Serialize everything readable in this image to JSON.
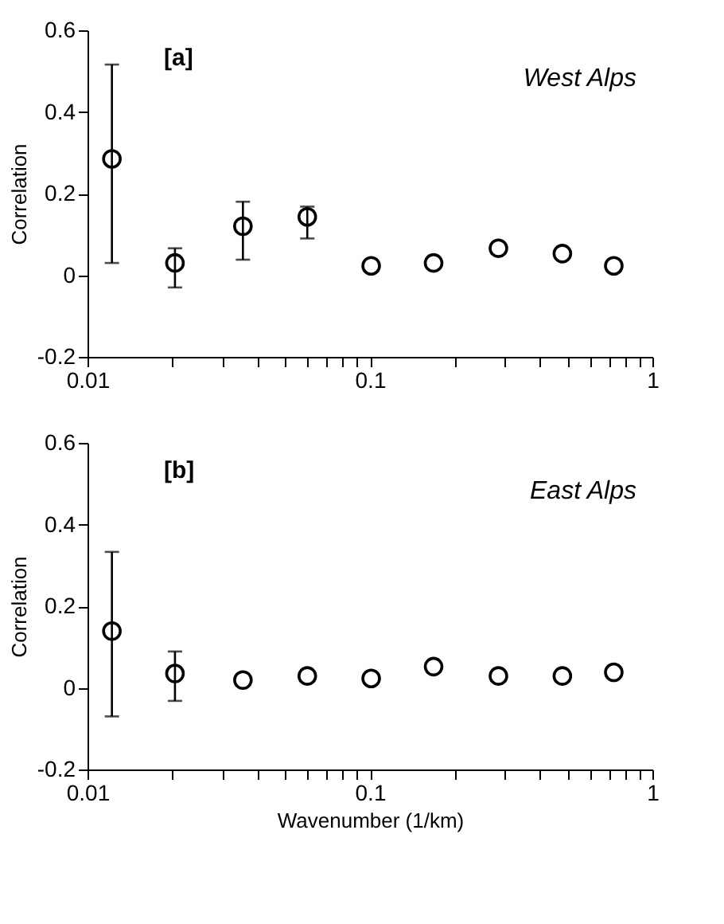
{
  "chart_data": [
    {
      "type": "scatter",
      "annotations": [
        "[a]",
        "West Alps"
      ],
      "ylabel": "Correlation",
      "marker": "circle",
      "grid": false,
      "log": "x",
      "x": [
        0.0122,
        0.0204,
        0.0355,
        0.06,
        0.101,
        0.168,
        0.285,
        0.48,
        0.73
      ],
      "series": [
        {
          "color": "#000000",
          "values": [
            0.285,
            0.03,
            0.12,
            0.143,
            0.023,
            0.03,
            0.066,
            0.053,
            0.023
          ],
          "errors": [
            [
              0.03,
              0.516
            ],
            [
              -0.03,
              0.066
            ],
            [
              0.038,
              0.18
            ],
            [
              0.09,
              0.168
            ],
            null,
            null,
            null,
            null,
            null
          ]
        }
      ],
      "xlim": [
        0.01,
        1
      ],
      "xticks": [
        0.01,
        {
          "value": 0.02,
          "label": null
        },
        {
          "value": 0.03,
          "label": null
        },
        {
          "value": 0.04,
          "label": null
        },
        {
          "value": 0.05,
          "label": null
        },
        {
          "value": 0.06,
          "label": null
        },
        {
          "value": 0.07,
          "label": null
        },
        {
          "value": 0.08,
          "label": null
        },
        {
          "value": 0.09,
          "label": null
        },
        0.1,
        {
          "value": 0.2,
          "label": null
        },
        {
          "value": 0.3,
          "label": null
        },
        {
          "value": 0.4,
          "label": null
        },
        {
          "value": 0.5,
          "label": null
        },
        {
          "value": 0.6,
          "label": null
        },
        {
          "value": 0.7,
          "label": null
        },
        {
          "value": 0.8,
          "label": null
        },
        {
          "value": 0.9,
          "label": null
        },
        1
      ],
      "ylim": [
        -0.2,
        0.6
      ],
      "yticks": [
        -0.2,
        0,
        0.2,
        0.4,
        0.6
      ]
    },
    {
      "type": "scatter",
      "annotations": [
        "[b]",
        "East Alps"
      ],
      "ylabel": "Correlation",
      "xlabel": "Wavenumber   (1/km)",
      "marker": "circle",
      "grid": false,
      "log": "x",
      "x": [
        0.0122,
        0.0204,
        0.0355,
        0.06,
        0.101,
        0.168,
        0.285,
        0.48,
        0.73
      ],
      "series": [
        {
          "color": "#000000",
          "values": [
            0.139,
            0.035,
            0.019,
            0.029,
            0.023,
            0.052,
            0.029,
            0.029,
            0.038
          ],
          "errors": [
            [
              -0.07,
              0.333
            ],
            [
              -0.032,
              0.089
            ],
            null,
            null,
            null,
            null,
            null,
            null,
            null
          ]
        }
      ],
      "xlim": [
        0.01,
        1
      ],
      "xticks": [
        0.01,
        {
          "value": 0.02,
          "label": null
        },
        {
          "value": 0.03,
          "label": null
        },
        {
          "value": 0.04,
          "label": null
        },
        {
          "value": 0.05,
          "label": null
        },
        {
          "value": 0.06,
          "label": null
        },
        {
          "value": 0.07,
          "label": null
        },
        {
          "value": 0.08,
          "label": null
        },
        {
          "value": 0.09,
          "label": null
        },
        0.1,
        {
          "value": 0.2,
          "label": null
        },
        {
          "value": 0.3,
          "label": null
        },
        {
          "value": 0.4,
          "label": null
        },
        {
          "value": 0.5,
          "label": null
        },
        {
          "value": 0.6,
          "label": null
        },
        {
          "value": 0.7,
          "label": null
        },
        {
          "value": 0.8,
          "label": null
        },
        {
          "value": 0.9,
          "label": null
        },
        1
      ],
      "ylim": [
        -0.2,
        0.6
      ],
      "yticks": [
        -0.2,
        0,
        0.2,
        0.4,
        0.6
      ]
    }
  ]
}
